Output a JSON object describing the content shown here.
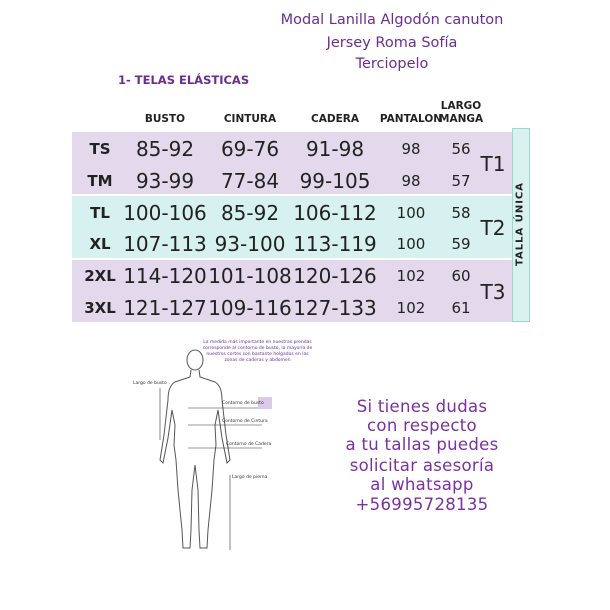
{
  "fabrics": [
    "Modal  Lanilla  Algodón  canuton",
    "Jersey  Roma  Sofía",
    "Terciopelo"
  ],
  "section_title": "1- TELAS  ELÁSTICAS",
  "table": {
    "headers": [
      "BUSTO",
      "CINTURA",
      "CADERA",
      "PANTALON",
      "LARGO MANGA"
    ],
    "rows": [
      [
        "TS",
        "85-92",
        "69-76",
        "91-98",
        "98",
        "56"
      ],
      [
        "TM",
        "93-99",
        "77-84",
        "99-105",
        "98",
        "57"
      ],
      [
        "TL",
        "100-106",
        "85-92",
        "106-112",
        "100",
        "58"
      ],
      [
        "XL",
        "107-113",
        "93-100",
        "113-119",
        "100",
        "59"
      ],
      [
        "2XL",
        "114-120",
        "101-108",
        "120-126",
        "102",
        "60"
      ],
      [
        "3XL",
        "121-127",
        "109-116",
        "127-133",
        "102",
        "61"
      ]
    ],
    "groups": [
      "T1",
      "T2",
      "T3"
    ],
    "side_label": "TALLA ÚNICA"
  },
  "figure": {
    "note": "La medida más importante en nuestras prendas corresponde al contorno de busto, la mayoría de nuestros cortes son bastante holgados en las zonas de caderas y abdomen",
    "labels": [
      "Largo de busto",
      "Contorno de busto",
      "Contorno de Cintura",
      "Contorno de Cadera",
      "Largo de pierna"
    ]
  },
  "contact": [
    "Si tienes dudas",
    "con respecto",
    "a tu tallas puedes",
    "solicitar asesoría",
    "al whatsapp",
    "+56995728135"
  ]
}
